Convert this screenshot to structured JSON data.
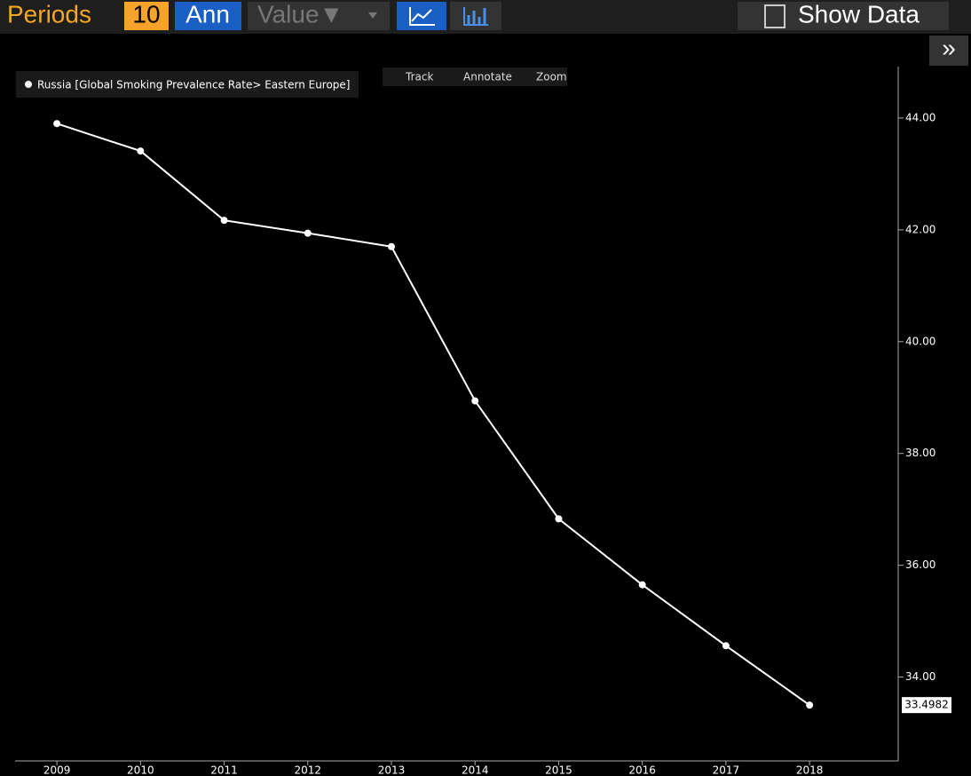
{
  "toolbar": {
    "periods_label": "Periods",
    "periods": "10",
    "frequency": "Ann",
    "mode": "Value▼",
    "show_data": "Show Data",
    "expand": "»"
  },
  "chart_tools": [
    "Track",
    "Annotate",
    "Zoom"
  ],
  "chart_data": {
    "type": "line",
    "x": [
      2009,
      2010,
      2011,
      2012,
      2013,
      2014,
      2015,
      2016,
      2017,
      2018
    ],
    "series": [
      {
        "name": "Russia [Global Smoking Prevalence Rate> Eastern Europe]",
        "color": "#ffffff",
        "values": [
          43.9,
          43.41,
          42.17,
          41.94,
          41.7,
          38.94,
          36.83,
          35.65,
          34.56,
          33.4982
        ]
      }
    ],
    "xlim": [
      2008.5,
      2019.06
    ],
    "xticks": [
      2009,
      2010,
      2011,
      2012,
      2013,
      2014,
      2015,
      2016,
      2017,
      2018
    ],
    "ylim": [
      32.5,
      44.92
    ],
    "yticks": [
      {
        "value": 34,
        "label": "34.00"
      },
      {
        "value": 36,
        "label": "36.00"
      },
      {
        "value": 38,
        "label": "38.00"
      },
      {
        "value": 40,
        "label": "40.00"
      },
      {
        "value": 42,
        "label": "42.00"
      },
      {
        "value": 44,
        "label": "44.00"
      }
    ],
    "grid": false
  }
}
